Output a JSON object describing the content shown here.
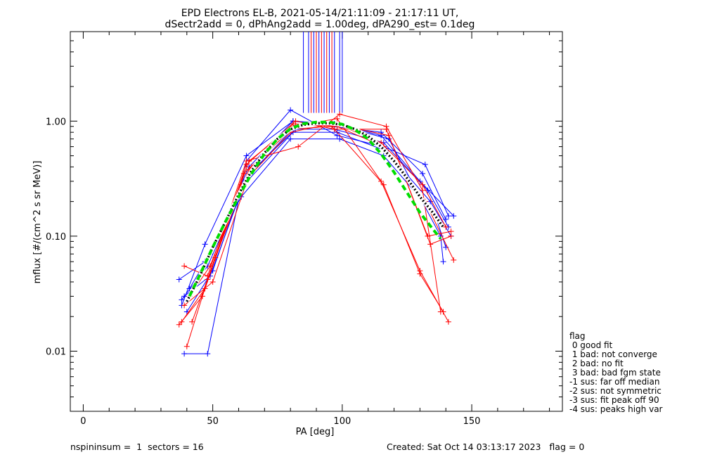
{
  "chart_data": {
    "type": "line",
    "title_line1": "EPD Electrons EL-B, 2021-05-14/21:11:09 - 21:17:11 UT,",
    "title_line2": "dSectr2add = 0, dPhAng2add = 1.00deg, dPA290_est=   0.1deg",
    "xlabel": "PA [deg]",
    "ylabel": "mflux [#/(cm^2 s sr MeV)]",
    "xlim": [
      -5,
      185
    ],
    "ylim": [
      0.003,
      6.0
    ],
    "yscale": "log",
    "xticks": [
      0,
      50,
      100,
      150
    ],
    "xtick_labels": [
      "0",
      "50",
      "100",
      "150"
    ],
    "yticks": [
      0.01,
      0.1,
      1.0
    ],
    "ytick_labels": [
      "0.01",
      "0.10",
      "1.00"
    ],
    "colors": {
      "blue": "#0000ff",
      "red": "#ff0000",
      "green": "#00dd00",
      "black": "#000000",
      "white": "#ffffff"
    },
    "vertical_lines": {
      "blue": [
        85,
        87,
        89,
        91,
        93,
        95,
        97,
        99,
        100
      ],
      "red": [
        88,
        90,
        92,
        94,
        96
      ]
    },
    "series": [
      {
        "color": "blue",
        "x": [
          39,
          48,
          63,
          80,
          98,
          116,
          132,
          141
        ],
        "y": [
          0.0095,
          0.0095,
          0.45,
          1.25,
          0.75,
          0.6,
          0.42,
          0.15
        ]
      },
      {
        "color": "blue",
        "x": [
          38,
          47,
          63,
          81,
          96,
          115,
          131,
          140
        ],
        "y": [
          0.025,
          0.085,
          0.5,
          1.0,
          0.9,
          0.8,
          0.35,
          0.14
        ]
      },
      {
        "color": "blue",
        "x": [
          38,
          48,
          64,
          82,
          97,
          116,
          133,
          141
        ],
        "y": [
          0.028,
          0.055,
          0.35,
          0.85,
          0.85,
          0.65,
          0.25,
          0.12
        ]
      },
      {
        "color": "blue",
        "x": [
          39,
          49,
          62,
          81,
          98,
          117,
          134,
          142
        ],
        "y": [
          0.03,
          0.045,
          0.28,
          0.8,
          0.8,
          0.55,
          0.2,
          0.1
        ]
      },
      {
        "color": "blue",
        "x": [
          37,
          47,
          61,
          80,
          99,
          116,
          136,
          140
        ],
        "y": [
          0.042,
          0.06,
          0.22,
          0.7,
          0.7,
          0.5,
          0.15,
          0.08
        ]
      },
      {
        "color": "blue",
        "x": [
          40,
          50,
          62,
          82,
          96,
          118,
          138,
          139
        ],
        "y": [
          0.022,
          0.05,
          0.3,
          0.92,
          0.95,
          0.7,
          0.1,
          0.06
        ]
      },
      {
        "color": "blue",
        "x": [
          41,
          49,
          64,
          81,
          97,
          115,
          130,
          143
        ],
        "y": [
          0.035,
          0.07,
          0.4,
          1.0,
          0.95,
          0.75,
          0.3,
          0.15
        ]
      },
      {
        "color": "red",
        "x": [
          39,
          48,
          63,
          83,
          99,
          117,
          131,
          138
        ],
        "y": [
          0.055,
          0.045,
          0.45,
          0.6,
          1.15,
          0.9,
          0.25,
          0.022
        ]
      },
      {
        "color": "red",
        "x": [
          37,
          46,
          64,
          81,
          98,
          115,
          130,
          141
        ],
        "y": [
          0.017,
          0.03,
          0.45,
          0.9,
          1.05,
          0.3,
          0.05,
          0.018
        ]
      },
      {
        "color": "red",
        "x": [
          38,
          47,
          62,
          80,
          96,
          116,
          130,
          139
        ],
        "y": [
          0.018,
          0.035,
          0.35,
          0.85,
          0.9,
          0.28,
          0.047,
          0.022
        ]
      },
      {
        "color": "red",
        "x": [
          40,
          48,
          63,
          82,
          97,
          117,
          133,
          142
        ],
        "y": [
          0.011,
          0.042,
          0.42,
          1.0,
          0.85,
          0.85,
          0.1,
          0.11
        ]
      },
      {
        "color": "red",
        "x": [
          39,
          50,
          65,
          81,
          98,
          116,
          132,
          143
        ],
        "y": [
          0.025,
          0.04,
          0.4,
          0.95,
          0.9,
          0.6,
          0.2,
          0.062
        ]
      },
      {
        "color": "red",
        "x": [
          41,
          49,
          61,
          80,
          96,
          118,
          134,
          142
        ],
        "y": [
          0.03,
          0.055,
          0.28,
          0.8,
          0.95,
          0.75,
          0.085,
          0.1
        ]
      },
      {
        "color": "red",
        "x": [
          42,
          51,
          64,
          82,
          99,
          115,
          131,
          140
        ],
        "y": [
          0.018,
          0.065,
          0.38,
          0.92,
          0.92,
          0.65,
          0.28,
          0.12
        ]
      }
    ],
    "fit_lines": [
      {
        "style": "white",
        "x": [
          40,
          45,
          50,
          55,
          60,
          65,
          70,
          75,
          80,
          85,
          90,
          95,
          100,
          105,
          110,
          115,
          120,
          125,
          130,
          135,
          139
        ],
        "y": [
          0.027,
          0.045,
          0.08,
          0.135,
          0.23,
          0.37,
          0.53,
          0.7,
          0.85,
          0.93,
          0.96,
          0.96,
          0.93,
          0.85,
          0.74,
          0.6,
          0.45,
          0.32,
          0.22,
          0.16,
          0.12
        ]
      },
      {
        "style": "black-dotted",
        "x": [
          40,
          45,
          50,
          55,
          60,
          65,
          70,
          75,
          80,
          85,
          90,
          95,
          100,
          105,
          110,
          115,
          120,
          125,
          130,
          135,
          139
        ],
        "y": [
          0.027,
          0.045,
          0.08,
          0.135,
          0.23,
          0.37,
          0.53,
          0.7,
          0.85,
          0.93,
          0.96,
          0.96,
          0.93,
          0.85,
          0.74,
          0.6,
          0.45,
          0.32,
          0.22,
          0.16,
          0.12
        ]
      },
      {
        "style": "green-dashed",
        "x": [
          41,
          45,
          50,
          55,
          60,
          65,
          70,
          75,
          80,
          85,
          90,
          95,
          100,
          105,
          110,
          115,
          120,
          125,
          130,
          135,
          138
        ],
        "y": [
          0.03,
          0.046,
          0.08,
          0.135,
          0.22,
          0.35,
          0.52,
          0.7,
          0.86,
          0.95,
          0.98,
          0.98,
          0.94,
          0.84,
          0.7,
          0.52,
          0.36,
          0.24,
          0.16,
          0.115,
          0.095
        ]
      }
    ]
  },
  "legend": {
    "title": "flag",
    "items": [
      " 0 good fit",
      " 1 bad: not converge",
      " 2 bad: no fit",
      " 3 bad: bad fgm state",
      "-1 sus: far off median",
      "-2 sus: not symmetric",
      "-3 sus: fit peak off 90",
      "-4 sus: peaks high var"
    ]
  },
  "footer": {
    "left": "nspininsum =  1  sectors = 16",
    "right": "Created: Sat Oct 14 03:13:17 2023   flag = 0"
  }
}
